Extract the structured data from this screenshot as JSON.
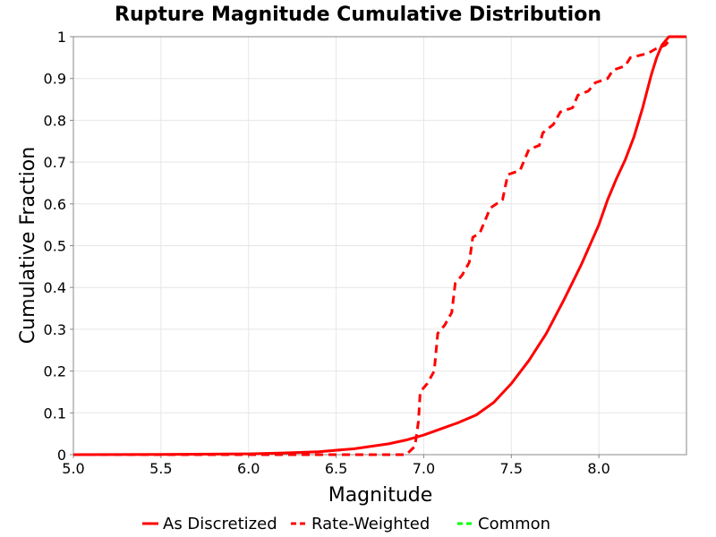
{
  "chart_data": {
    "type": "line",
    "title": "Rupture Magnitude Cumulative Distribution",
    "xlabel": "Magnitude",
    "ylabel": "Cumulative Fraction",
    "xlim": [
      5.0,
      8.5
    ],
    "ylim": [
      0,
      1
    ],
    "x_ticks": [
      "5.0",
      "5.5",
      "6.0",
      "6.5",
      "7.0",
      "7.5",
      "8.0"
    ],
    "y_ticks": [
      "0",
      "0.1",
      "0.2",
      "0.3",
      "0.4",
      "0.5",
      "0.6",
      "0.7",
      "0.8",
      "0.9",
      "1"
    ],
    "grid": true,
    "legend_position": "bottom",
    "series": [
      {
        "name": "As Discretized",
        "color": "#ff0000",
        "style": "solid",
        "points": [
          [
            5.0,
            0.0
          ],
          [
            5.5,
            0.0005
          ],
          [
            6.0,
            0.002
          ],
          [
            6.2,
            0.004
          ],
          [
            6.4,
            0.007
          ],
          [
            6.6,
            0.014
          ],
          [
            6.8,
            0.026
          ],
          [
            6.9,
            0.035
          ],
          [
            7.0,
            0.047
          ],
          [
            7.1,
            0.062
          ],
          [
            7.2,
            0.077
          ],
          [
            7.3,
            0.095
          ],
          [
            7.4,
            0.125
          ],
          [
            7.5,
            0.17
          ],
          [
            7.6,
            0.225
          ],
          [
            7.7,
            0.29
          ],
          [
            7.8,
            0.37
          ],
          [
            7.9,
            0.455
          ],
          [
            8.0,
            0.55
          ],
          [
            8.05,
            0.61
          ],
          [
            8.1,
            0.66
          ],
          [
            8.15,
            0.705
          ],
          [
            8.2,
            0.76
          ],
          [
            8.25,
            0.83
          ],
          [
            8.3,
            0.91
          ],
          [
            8.33,
            0.95
          ],
          [
            8.36,
            0.98
          ],
          [
            8.4,
            1.0
          ],
          [
            8.5,
            1.0
          ]
        ]
      },
      {
        "name": "Rate-Weighted",
        "color": "#ff0000",
        "style": "dashed",
        "points": [
          [
            5.0,
            0.0
          ],
          [
            6.9,
            0.0
          ],
          [
            6.95,
            0.02
          ],
          [
            6.97,
            0.08
          ],
          [
            6.98,
            0.15
          ],
          [
            7.02,
            0.17
          ],
          [
            7.06,
            0.2
          ],
          [
            7.08,
            0.29
          ],
          [
            7.12,
            0.31
          ],
          [
            7.16,
            0.34
          ],
          [
            7.18,
            0.41
          ],
          [
            7.22,
            0.43
          ],
          [
            7.26,
            0.46
          ],
          [
            7.28,
            0.52
          ],
          [
            7.32,
            0.53
          ],
          [
            7.38,
            0.59
          ],
          [
            7.45,
            0.61
          ],
          [
            7.48,
            0.67
          ],
          [
            7.55,
            0.68
          ],
          [
            7.6,
            0.73
          ],
          [
            7.66,
            0.74
          ],
          [
            7.68,
            0.77
          ],
          [
            7.74,
            0.79
          ],
          [
            7.78,
            0.82
          ],
          [
            7.85,
            0.83
          ],
          [
            7.88,
            0.86
          ],
          [
            7.94,
            0.87
          ],
          [
            7.98,
            0.89
          ],
          [
            8.05,
            0.9
          ],
          [
            8.08,
            0.92
          ],
          [
            8.15,
            0.93
          ],
          [
            8.18,
            0.95
          ],
          [
            8.28,
            0.96
          ],
          [
            8.32,
            0.97
          ],
          [
            8.38,
            0.98
          ],
          [
            8.4,
            0.99
          ]
        ]
      },
      {
        "name": "Common",
        "color": "#00ff00",
        "style": "dashed",
        "points": []
      }
    ]
  }
}
